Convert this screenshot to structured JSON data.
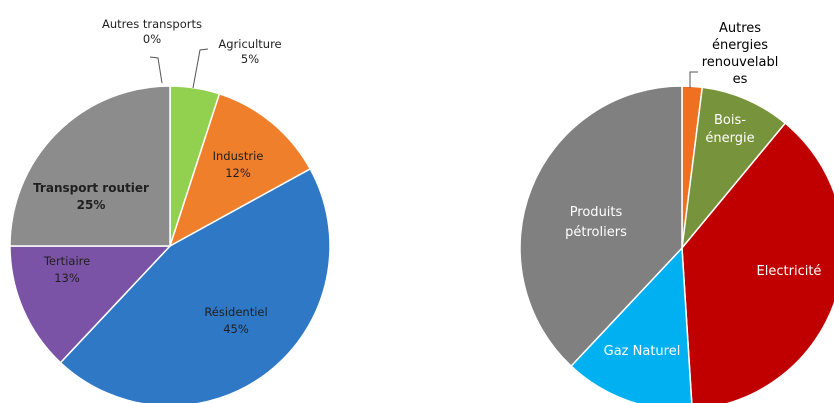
{
  "chart_data": [
    {
      "type": "pie",
      "categories": [
        "Autres transports",
        "Agriculture",
        "Industrie",
        "Résidentiel",
        "Tertiaire",
        "Transport routier"
      ],
      "values": [
        0,
        5,
        12,
        45,
        13,
        25
      ],
      "value_labels": [
        "0%",
        "5%",
        "12%",
        "45%",
        "13%",
        "25%"
      ],
      "colors": [
        "#1a1a1a",
        "#92d050",
        "#f07f2b",
        "#2f78c6",
        "#7b53a6",
        "#8c8c8c"
      ],
      "title": "",
      "legend": "none"
    },
    {
      "type": "pie",
      "categories": [
        "Autres énergies renouvelables",
        "Bois-énergie",
        "Electricité",
        "Gaz Naturel",
        "Produits pétroliers"
      ],
      "values": [
        2,
        9,
        38,
        13,
        38
      ],
      "label_lines": [
        [
          "Autres",
          "énergies",
          "renouvelabl",
          "es"
        ],
        [
          "Bois-",
          "énergie"
        ],
        [
          "Electricité"
        ],
        [
          "Gaz Naturel"
        ],
        [
          "Produits",
          "pétroliers"
        ]
      ],
      "colors": [
        "#f07022",
        "#77933c",
        "#c00000",
        "#00b0f0",
        "#808080"
      ],
      "title": "",
      "legend": "none"
    }
  ]
}
